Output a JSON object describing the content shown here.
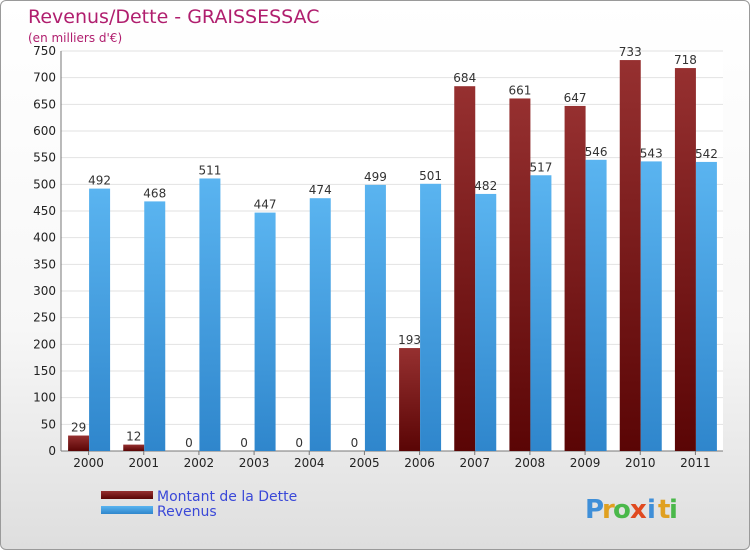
{
  "chart_data": {
    "type": "bar",
    "title": "Revenus/Dette - GRAISSESSAC",
    "subtitle": "(en milliers d'€)",
    "categories": [
      "2000",
      "2001",
      "2002",
      "2003",
      "2004",
      "2005",
      "2006",
      "2007",
      "2008",
      "2009",
      "2010",
      "2011"
    ],
    "series": [
      {
        "name": "Montant de la Dette",
        "color": "#7a1414",
        "values": [
          29,
          12,
          0,
          0,
          0,
          0,
          193,
          684,
          661,
          647,
          733,
          718
        ]
      },
      {
        "name": "Revenus",
        "color": "#3ea0e6",
        "values": [
          492,
          468,
          511,
          447,
          474,
          499,
          501,
          482,
          517,
          546,
          543,
          542
        ]
      }
    ],
    "ylim": [
      0,
      750
    ],
    "yticks": [
      0,
      50,
      100,
      150,
      200,
      250,
      300,
      350,
      400,
      450,
      500,
      550,
      600,
      650,
      700,
      750
    ],
    "grid": true,
    "legend_position": "bottom-left",
    "xlabel": "",
    "ylabel": ""
  },
  "logo": {
    "letters": [
      "P",
      "r",
      "o",
      "x",
      "i",
      "t",
      "i"
    ],
    "colors": [
      "#3f8fd8",
      "#e0a020",
      "#4ab84a",
      "#e04a20",
      "#3f8fd8",
      "#e0a020",
      "#4ab84a"
    ]
  }
}
